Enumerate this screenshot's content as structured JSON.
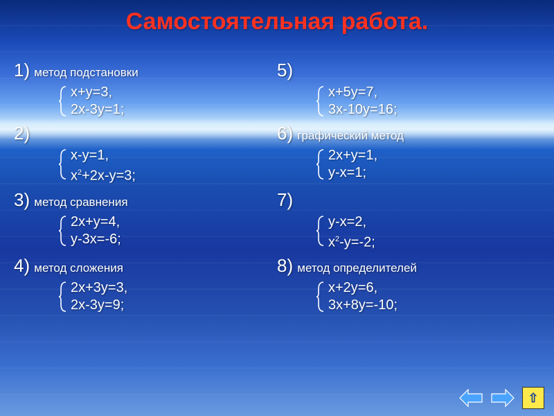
{
  "colors": {
    "title": "#ff3020",
    "text": "#ffffff",
    "brace_stroke": "#ffffff",
    "arrow_fill": "#4aa3ff",
    "arrow_stroke": "#ffffff",
    "home_bg": "#ffe84a",
    "home_fg": "#1a4090"
  },
  "title": "Самостоятельная работа.",
  "rows": [
    {
      "left": {
        "num": "1)",
        "label": "метод подстановки",
        "eq1": "x+y=3,",
        "eq2": "2x-3y=1;"
      },
      "right": {
        "num": "5)",
        "label": "",
        "eq1": "x+5y=7,",
        "eq2": "3x-10y=16;"
      }
    },
    {
      "left": {
        "num": "2)",
        "label": "",
        "eq1": "x-y=1,",
        "eq2_html": "x<span class=\"sup\">2</span>+2x-y=3;"
      },
      "right": {
        "num": "6)",
        "label": "графический метод",
        "eq1": "2x+y=1,",
        "eq2": "y-x=1;"
      }
    },
    {
      "left": {
        "num": "3)",
        "label": "метод сравнения",
        "eq1": "2x+y=4,",
        "eq2": "y-3x=-6;"
      },
      "right": {
        "num": "7)",
        "label": "",
        "eq1": "y-x=2,",
        "eq2_html": "x<span class=\"sup\">2</span>-y=-2;"
      }
    },
    {
      "left": {
        "num": "4)",
        "label": "метод сложения",
        "eq1": "2x+3y=3,",
        "eq2": "2x-3y=9;"
      },
      "right": {
        "num": "8)",
        "label": "метод определителей",
        "eq1": "x+2y=6,",
        "eq2": "3x+8y=-10;"
      }
    }
  ],
  "nav": {
    "home_glyph": "⇧"
  }
}
